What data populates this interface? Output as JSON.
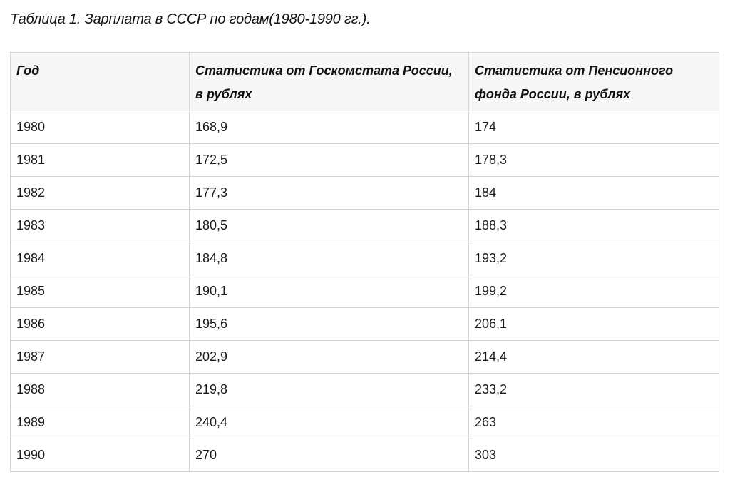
{
  "caption": "Таблица 1. Зарплата в СССР по годам(1980-1990 гг.).",
  "table": {
    "headers": [
      "Год",
      "Статистика от Госкомстата России, в рублях",
      "Статистика от Пенсионного фонда России, в рублях"
    ],
    "rows": [
      [
        "1980",
        "168,9",
        "174"
      ],
      [
        "1981",
        "172,5",
        "178,3"
      ],
      [
        "1982",
        "177,3",
        "184"
      ],
      [
        "1983",
        "180,5",
        "188,3"
      ],
      [
        "1984",
        "184,8",
        "193,2"
      ],
      [
        "1985",
        "190,1",
        "199,2"
      ],
      [
        "1986",
        "195,6",
        "206,1"
      ],
      [
        "1987",
        "202,9",
        "214,4"
      ],
      [
        "1988",
        "219,8",
        "233,2"
      ],
      [
        "1989",
        "240,4",
        "263"
      ],
      [
        "1990",
        "270",
        "303"
      ]
    ]
  }
}
